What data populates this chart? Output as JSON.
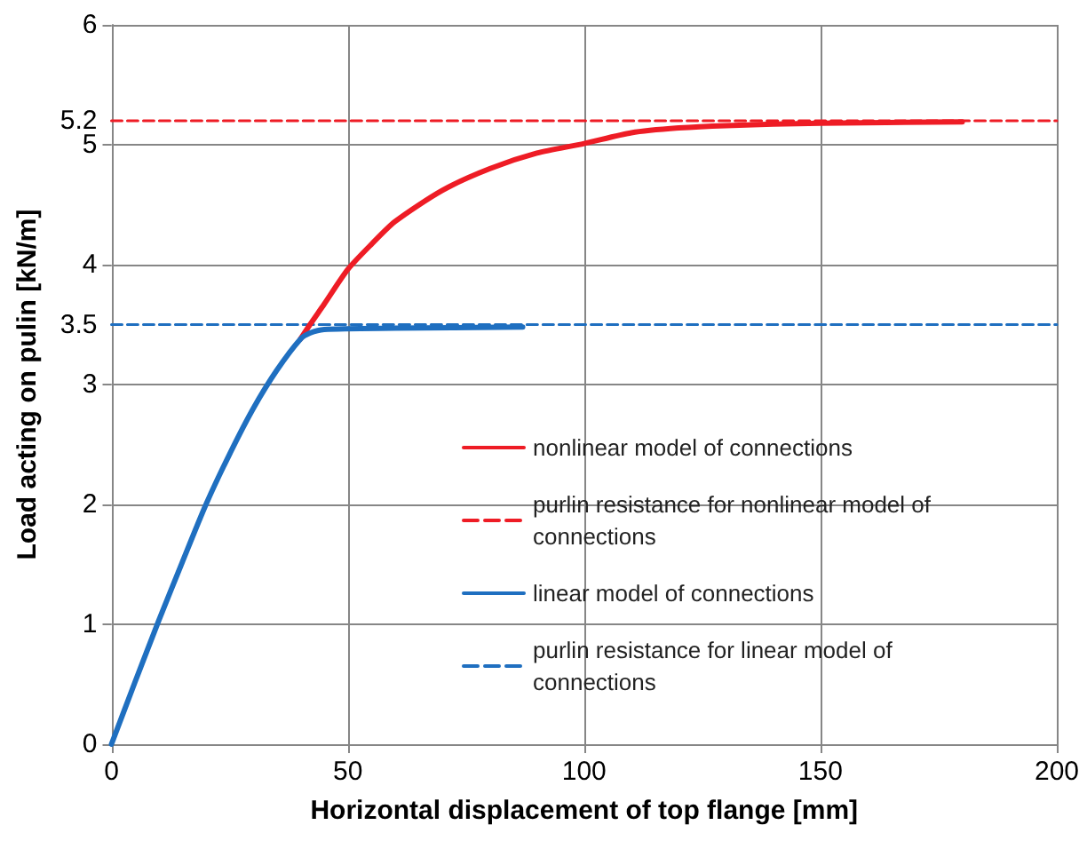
{
  "chart_data": {
    "type": "line",
    "xlabel": "Horizontal displacement of top flange [mm]",
    "ylabel": "Load acting on pulin [kN/m]",
    "xlim": [
      0,
      200
    ],
    "xticks": [
      0,
      50,
      100,
      150,
      200
    ],
    "ylim": [
      0,
      6
    ],
    "yticks": [
      0,
      1,
      2,
      3,
      3.5,
      4,
      5,
      5.2,
      6
    ],
    "grid": true,
    "legend": "bottom right",
    "marker": "none",
    "series": [
      {
        "name": "nonlinear model of connections",
        "color": "#ee1c25",
        "line_style": "solid",
        "x": [
          40,
          42,
          45,
          50,
          55,
          60,
          70,
          80,
          90,
          100,
          110,
          120,
          130,
          150,
          180
        ],
        "values": [
          3.38,
          3.5,
          3.67,
          3.96,
          4.17,
          4.36,
          4.62,
          4.8,
          4.93,
          5.01,
          5.1,
          5.14,
          5.16,
          5.18,
          5.19
        ]
      },
      {
        "name": "purlin resistance for nonlinear model of connections",
        "color": "#ee1c25",
        "line_style": "dashed",
        "x": [
          0,
          200
        ],
        "values": [
          5.2,
          5.2
        ]
      },
      {
        "name": "linear model of connections",
        "color": "#1f6fc0",
        "line_style": "solid",
        "x": [
          0,
          5,
          10,
          15,
          20,
          25,
          30,
          35,
          40,
          42,
          45,
          60,
          87
        ],
        "values": [
          0,
          0.52,
          1.03,
          1.52,
          2.0,
          2.42,
          2.8,
          3.12,
          3.38,
          3.43,
          3.46,
          3.47,
          3.48
        ]
      },
      {
        "name": "purlin resistance for linear model of connections",
        "color": "#1f6fc0",
        "line_style": "dashed",
        "x": [
          0,
          200
        ],
        "values": [
          3.5,
          3.5
        ]
      }
    ]
  }
}
